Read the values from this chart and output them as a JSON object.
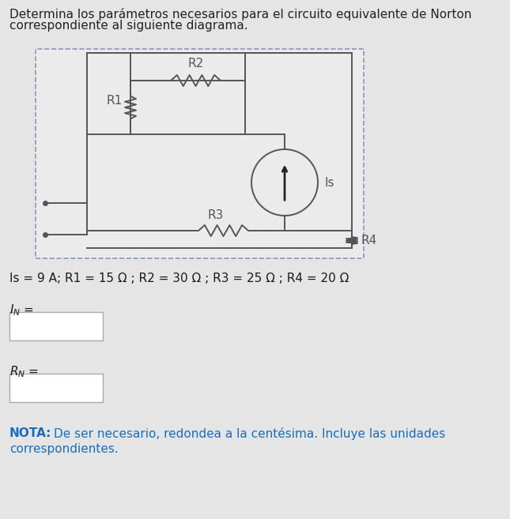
{
  "background_color": "#e5e5e5",
  "circuit_box_bg": "#ebebeb",
  "circuit_box_border": "#8899bb",
  "title_text1": "Determina los parámetros necesarios para el circuito equivalente de Norton",
  "title_text2": "correspondiente al siguiente diagrama.",
  "title_color": "#222222",
  "title_fontsize": 11.0,
  "params_text": "Is = 9 A; R1 = 15 Ω ; R2 = 30 Ω ; R3 = 25 Ω ; R4 = 20 Ω",
  "params_color": "#1a1a1a",
  "params_fontsize": 11.0,
  "label_color": "#1a1a1a",
  "label_fontsize": 11.0,
  "nota_color": "#1a6dbb",
  "nota_fontsize": 11.0,
  "input_box_color": "#ffffff",
  "input_box_border": "#aaaaaa",
  "circuit_line_color": "#555555",
  "R1_label": "R1",
  "R2_label": "R2",
  "R3_label": "R3",
  "R4_label": "R4",
  "Is_label": "Is"
}
